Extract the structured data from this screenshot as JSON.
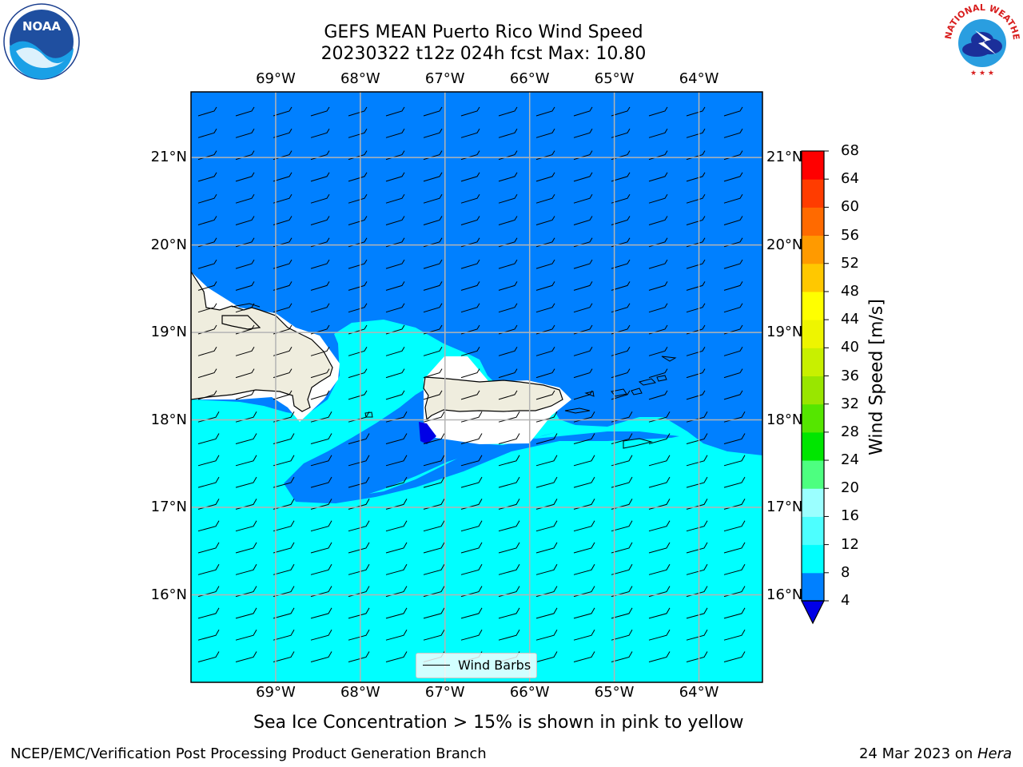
{
  "title": {
    "line1": "GEFS MEAN Puerto Rico Wind Speed",
    "line2": "20230322 t12z 024h fcst   Max: 10.80"
  },
  "map": {
    "lon_range": [
      -70.0,
      -63.25
    ],
    "lat_range": [
      15.0,
      21.75
    ],
    "lon_ticks": [
      {
        "value": -69,
        "label": "69°W"
      },
      {
        "value": -68,
        "label": "68°W"
      },
      {
        "value": -67,
        "label": "67°W"
      },
      {
        "value": -66,
        "label": "66°W"
      },
      {
        "value": -65,
        "label": "65°W"
      },
      {
        "value": -64,
        "label": "64°W"
      }
    ],
    "lat_ticks": [
      {
        "value": 21,
        "label": "21°N"
      },
      {
        "value": 20,
        "label": "20°N"
      },
      {
        "value": 19,
        "label": "19°N"
      },
      {
        "value": 18,
        "label": "18°N"
      },
      {
        "value": 17,
        "label": "17°N"
      },
      {
        "value": 16,
        "label": "16°N"
      }
    ],
    "colors": {
      "speed_4_8": "#0080ff",
      "speed_8_12": "#00ffff",
      "below_4": "#0000e6",
      "land": "#efedde",
      "grid": "#b4b4b4"
    },
    "legend_label": "Wind Barbs",
    "bottom_note": "Sea Ice Concentration > 15% is shown in pink to yellow"
  },
  "colorbar": {
    "label": "Wind Speed [m/s]",
    "levels": [
      4,
      8,
      12,
      16,
      20,
      24,
      28,
      32,
      36,
      40,
      44,
      48,
      52,
      56,
      60,
      64,
      68
    ],
    "colors": [
      "#0080ff",
      "#00ffff",
      "#4dffff",
      "#9bffff",
      "#4dff80",
      "#00e600",
      "#55e600",
      "#99e600",
      "#c8f000",
      "#eef500",
      "#ffff00",
      "#ffc800",
      "#ff9a00",
      "#ff6a00",
      "#ff3c00",
      "#ff0000"
    ],
    "extend_color": "#0000e6"
  },
  "footer": {
    "left": "NCEP/EMC/Verification Post Processing Product Generation Branch",
    "right_date": "24 Mar 2023 on ",
    "right_host": "Hera"
  },
  "logos": {
    "left": {
      "text": "NOAA",
      "icon": "noaa-logo-icon"
    },
    "right": {
      "text": "NATIONAL WEATHER SERVICE",
      "icon": "nws-logo-icon"
    }
  }
}
